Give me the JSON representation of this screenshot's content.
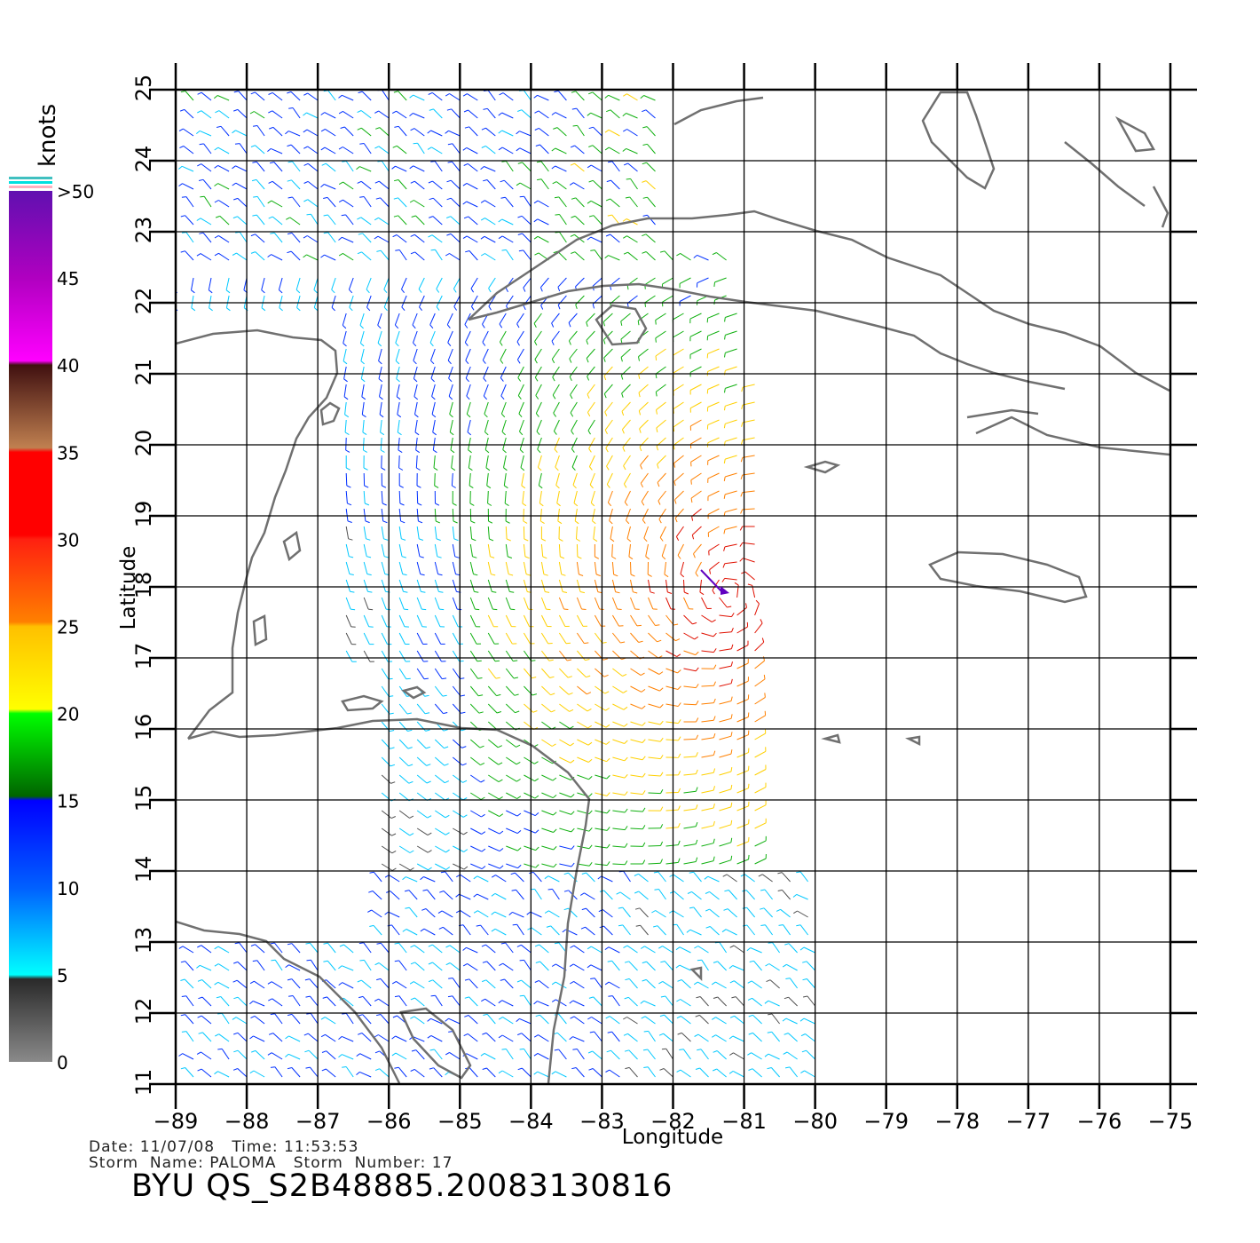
{
  "chart_data": {
    "type": "vector-field-map",
    "xlabel": "Longitude",
    "ylabel": "Latitude",
    "xlim": [
      -89,
      -75
    ],
    "ylim": [
      11,
      25
    ],
    "xticks": [
      "-89",
      "-88",
      "-87",
      "-86",
      "-85",
      "-84",
      "-83",
      "-82",
      "-81",
      "-80",
      "-79",
      "-78",
      "-77",
      "-76",
      "-75"
    ],
    "yticks": [
      "11",
      "12",
      "13",
      "14",
      "15",
      "16",
      "17",
      "18",
      "19",
      "20",
      "21",
      "22",
      "23",
      "24",
      "25"
    ],
    "grid": true,
    "colorbar": {
      "title": "knots",
      "labels": [
        "0",
        "5",
        "10",
        "15",
        "20",
        "25",
        "30",
        "35",
        "40",
        "45",
        ">50"
      ],
      "colors": [
        "#808080",
        "#00ffff",
        "#0000ff",
        "#00ff00",
        "#ffff00",
        "#ffa500",
        "#ff0000",
        "#a0522d",
        "#ff00ff",
        "#8000c0"
      ]
    },
    "storm_center": {
      "lon": -81.2,
      "lat": 17.9
    }
  },
  "info": {
    "date_line": "Date: 11/07/08   Time: 11:53:53",
    "storm_line": "Storm  Name: PALOMA   Storm  Number: 17",
    "title": "BYU  QS_S2B48885.20083130816"
  }
}
